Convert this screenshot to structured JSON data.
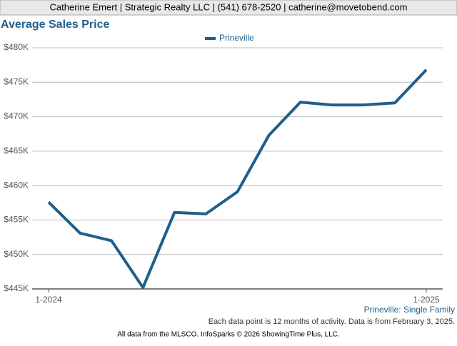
{
  "header": "Catherine Emert | Strategic Realty LLC | (541) 678-2520 | catherine@movetobend.com",
  "chart_data": {
    "type": "line",
    "title": "Average Sales Price",
    "categories": [
      "1-2024",
      null,
      null,
      null,
      null,
      null,
      null,
      null,
      null,
      null,
      null,
      null,
      "1-2025"
    ],
    "series": [
      {
        "name": "Prineville",
        "color": "#1f5f8b",
        "values": [
          457600,
          453100,
          452000,
          445200,
          456100,
          455900,
          459100,
          467300,
          472100,
          471700,
          471700,
          472000,
          476800
        ]
      }
    ],
    "ylim": [
      445000,
      480000
    ],
    "yticks": [
      {
        "value": 445000,
        "label": "$445K"
      },
      {
        "value": 450000,
        "label": "$450K"
      },
      {
        "value": 455000,
        "label": "$455K"
      },
      {
        "value": 460000,
        "label": "$460K"
      },
      {
        "value": 465000,
        "label": "$465K"
      },
      {
        "value": 470000,
        "label": "$470K"
      },
      {
        "value": 475000,
        "label": "$475K"
      },
      {
        "value": 480000,
        "label": "$480K"
      }
    ],
    "grid": true,
    "subtitle": "Prineville: Single Family",
    "note": "Each data point is 12 months of activity. Data is from February 3, 2025."
  },
  "footer": "All data from the MLSCO. InfoSparks © 2026 ShowingTime Plus, LLC."
}
